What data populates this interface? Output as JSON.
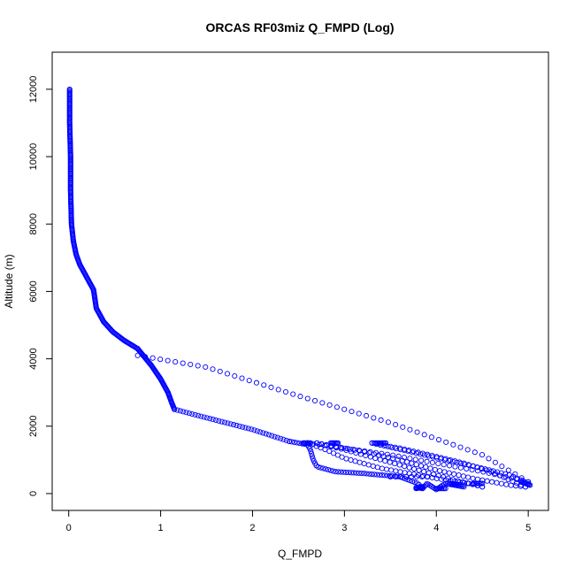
{
  "chart_data": {
    "type": "scatter",
    "title": "ORCAS RF03miz Q_FMPD (Log)",
    "xlabel": "Q_FMPD",
    "ylabel": "Altitude (m)",
    "xlim": [
      -0.18,
      5.22
    ],
    "ylim": [
      -500,
      13100
    ],
    "xticks": [
      0,
      1,
      2,
      3,
      4,
      5
    ],
    "yticks": [
      0,
      2000,
      4000,
      6000,
      8000,
      10000,
      12000
    ],
    "grid": false,
    "legend": "none",
    "marker": "open-circle",
    "color": "#0000ff",
    "segments": [
      {
        "x": [
          0.01,
          0.01,
          0.02,
          0.02,
          0.03,
          0.05,
          0.08,
          0.12,
          0.18,
          0.23,
          0.27,
          0.3,
          0.38,
          0.48,
          0.6,
          0.72,
          0.75
        ],
        "y": [
          12000,
          11000,
          10000,
          9000,
          8000,
          7500,
          7100,
          6800,
          6500,
          6250,
          6050,
          5500,
          5100,
          4800,
          4550,
          4350,
          4300
        ],
        "n": 260
      },
      {
        "x": [
          0.75,
          0.9,
          1.0,
          1.08,
          1.12,
          1.15
        ],
        "y": [
          4300,
          3800,
          3400,
          3000,
          2700,
          2500
        ],
        "n": 60
      },
      {
        "x": [
          1.15,
          1.5,
          2.0,
          2.4
        ],
        "y": [
          2500,
          2250,
          1900,
          1550
        ],
        "n": 40
      },
      {
        "x": [
          2.4,
          2.6,
          2.63,
          2.66,
          2.7,
          2.9,
          3.2,
          3.6,
          3.8,
          3.85
        ],
        "y": [
          1550,
          1450,
          1300,
          1000,
          800,
          650,
          600,
          500,
          300,
          150
        ],
        "n": 60
      },
      {
        "x": [
          3.78,
          3.85,
          3.9,
          4.0,
          4.1,
          4.3
        ],
        "y": [
          180,
          150,
          300,
          120,
          300,
          200
        ],
        "n": 30
      },
      {
        "x": [
          0.75,
          1.5,
          2.5,
          3.5,
          4.5,
          5.0
        ],
        "y": [
          4100,
          3750,
          2900,
          2100,
          1150,
          350
        ],
        "n": 55
      },
      {
        "x": [
          5.0,
          4.5,
          4.0,
          3.5,
          3.0,
          2.6
        ],
        "y": [
          350,
          650,
          900,
          1150,
          1350,
          1500
        ],
        "n": 40
      },
      {
        "x": [
          2.6,
          2.8,
          3.0,
          3.4,
          4.0,
          4.4,
          4.5
        ],
        "y": [
          1500,
          1300,
          1050,
          750,
          450,
          280,
          200
        ],
        "n": 40
      },
      {
        "x": [
          4.5,
          4.2,
          3.8,
          3.4,
          3.0,
          2.7
        ],
        "y": [
          200,
          400,
          700,
          1000,
          1300,
          1500
        ],
        "n": 35
      },
      {
        "x": [
          2.7,
          3.2,
          3.6,
          4.0,
          4.4,
          4.8,
          4.97
        ],
        "y": [
          1500,
          1250,
          1000,
          700,
          450,
          250,
          200
        ],
        "n": 45
      },
      {
        "x": [
          4.97,
          4.8,
          4.6,
          4.3,
          4.0,
          3.6,
          3.3
        ],
        "y": [
          200,
          400,
          650,
          900,
          1100,
          1350,
          1500
        ],
        "n": 35
      },
      {
        "x": [
          3.3,
          3.7,
          4.1,
          4.5,
          4.8,
          5.0
        ],
        "y": [
          1500,
          1250,
          1000,
          750,
          550,
          300
        ],
        "n": 40
      },
      {
        "x": [
          2.55,
          2.63
        ],
        "y": [
          1500,
          1500
        ],
        "n": 8
      },
      {
        "x": [
          2.85,
          2.93
        ],
        "y": [
          1500,
          1500
        ],
        "n": 8
      },
      {
        "x": [
          3.32,
          3.45
        ],
        "y": [
          1500,
          1500
        ],
        "n": 10
      },
      {
        "x": [
          3.78,
          3.85
        ],
        "y": [
          150,
          200
        ],
        "n": 8
      },
      {
        "x": [
          4.0,
          4.1
        ],
        "y": [
          150,
          150
        ],
        "n": 8
      },
      {
        "x": [
          4.15,
          4.3
        ],
        "y": [
          300,
          250
        ],
        "n": 8
      },
      {
        "x": [
          4.4,
          4.5
        ],
        "y": [
          300,
          300
        ],
        "n": 8
      },
      {
        "x": [
          4.92,
          5.02
        ],
        "y": [
          350,
          250
        ],
        "n": 10
      },
      {
        "x": [
          3.5,
          3.9
        ],
        "y": [
          500,
          500
        ],
        "n": 8
      }
    ]
  }
}
